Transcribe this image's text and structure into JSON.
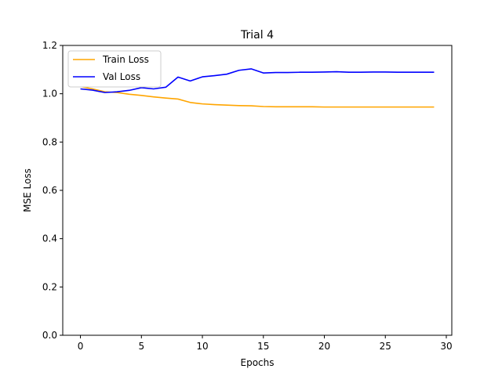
{
  "chart_data": {
    "type": "line",
    "title": "Trial 4",
    "xlabel": "Epochs",
    "ylabel": "MSE Loss",
    "xlim": [
      -1.45,
      30.45
    ],
    "ylim": [
      0.0,
      1.2
    ],
    "xticks": [
      0,
      5,
      10,
      15,
      20,
      25,
      30
    ],
    "yticks": [
      0.0,
      0.2,
      0.4,
      0.6,
      0.8,
      1.0,
      1.2
    ],
    "ytick_labels": [
      "0.0",
      "0.2",
      "0.4",
      "0.6",
      "0.8",
      "1.0",
      "1.2"
    ],
    "grid": false,
    "legend_position": "upper-left",
    "x": [
      0,
      1,
      2,
      3,
      4,
      5,
      6,
      7,
      8,
      9,
      10,
      11,
      12,
      13,
      14,
      15,
      16,
      17,
      18,
      19,
      20,
      21,
      22,
      23,
      24,
      25,
      26,
      27,
      28,
      29
    ],
    "series": [
      {
        "name": "Train Loss",
        "color": "#ffa500",
        "values": [
          1.03,
          1.02,
          1.008,
          1.005,
          0.998,
          0.993,
          0.987,
          0.982,
          0.978,
          0.964,
          0.958,
          0.955,
          0.953,
          0.951,
          0.95,
          0.947,
          0.946,
          0.946,
          0.946,
          0.946,
          0.945,
          0.945,
          0.945,
          0.945,
          0.945,
          0.945,
          0.945,
          0.945,
          0.945,
          0.945
        ]
      },
      {
        "name": "Val Loss",
        "color": "#0000ff",
        "values": [
          1.02,
          1.015,
          1.005,
          1.008,
          1.014,
          1.025,
          1.02,
          1.027,
          1.069,
          1.053,
          1.07,
          1.075,
          1.081,
          1.097,
          1.103,
          1.086,
          1.088,
          1.088,
          1.089,
          1.089,
          1.09,
          1.091,
          1.089,
          1.089,
          1.09,
          1.09,
          1.089,
          1.089,
          1.089,
          1.089
        ]
      }
    ]
  }
}
